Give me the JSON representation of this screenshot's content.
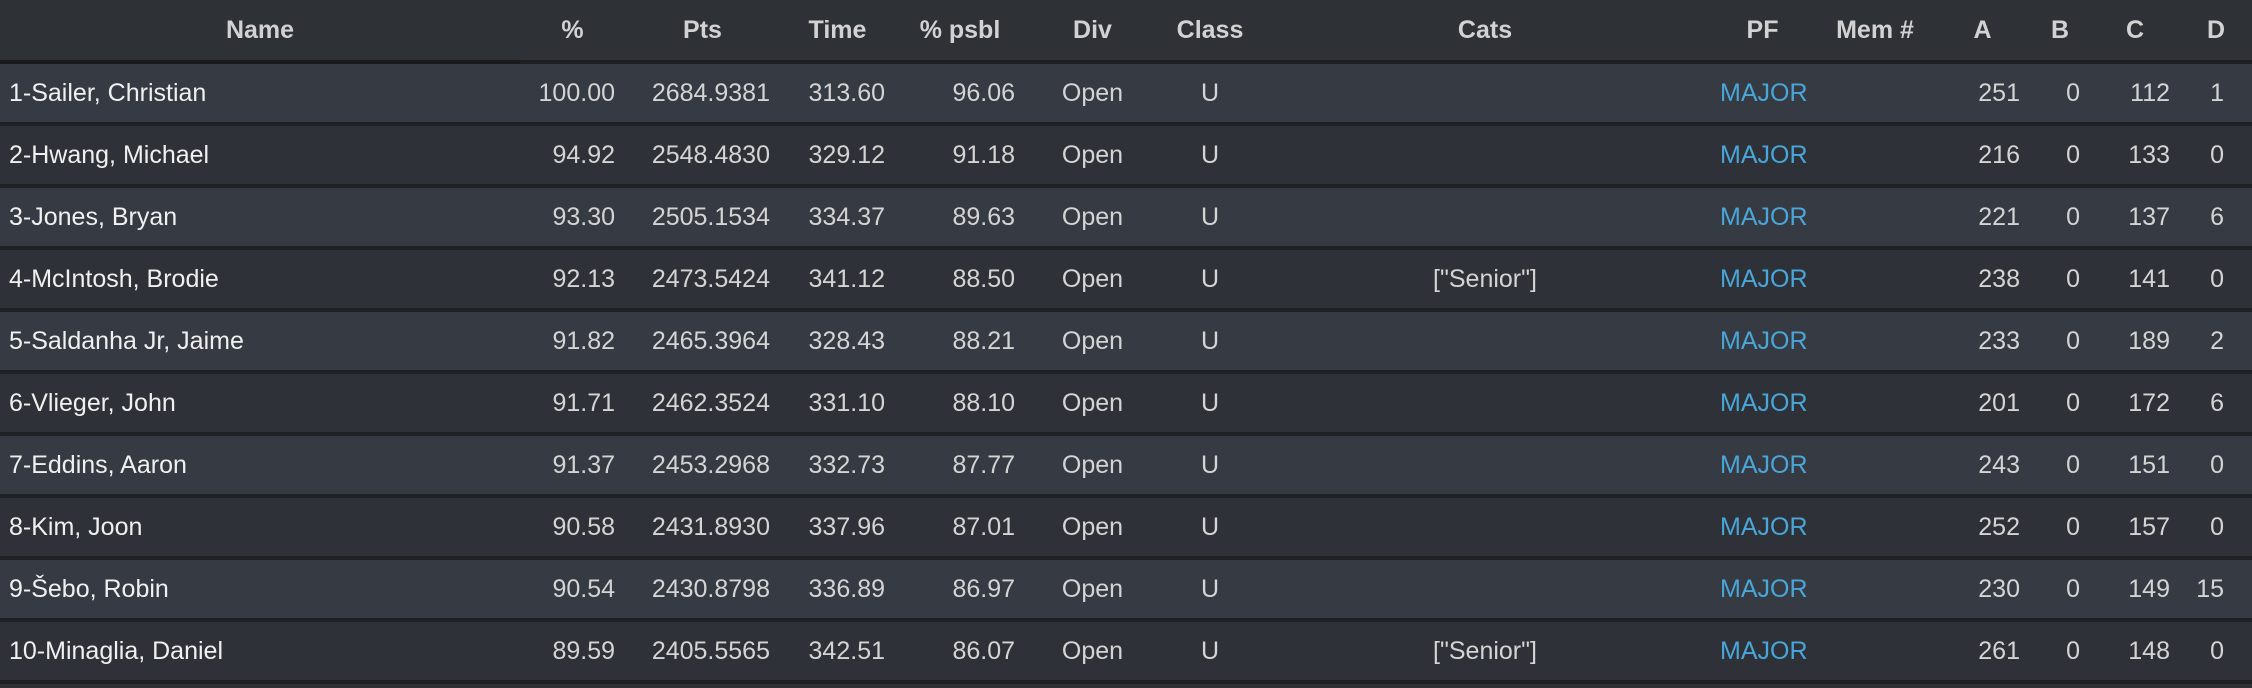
{
  "columns": [
    "Name",
    "%",
    "Pts",
    "Time",
    "% psbl",
    "Div",
    "Class",
    "Cats",
    "PF",
    "Mem #",
    "A",
    "B",
    "C",
    "D"
  ],
  "accent_color": "#4aa6d8",
  "rows": [
    [
      "1-Sailer, Christian",
      "100.00",
      "2684.9381",
      "313.60",
      "96.06",
      "Open",
      "U",
      "",
      "MAJOR",
      "",
      "251",
      "0",
      "112",
      "1"
    ],
    [
      "2-Hwang, Michael",
      "94.92",
      "2548.4830",
      "329.12",
      "91.18",
      "Open",
      "U",
      "",
      "MAJOR",
      "",
      "216",
      "0",
      "133",
      "0"
    ],
    [
      "3-Jones, Bryan",
      "93.30",
      "2505.1534",
      "334.37",
      "89.63",
      "Open",
      "U",
      "",
      "MAJOR",
      "",
      "221",
      "0",
      "137",
      "6"
    ],
    [
      "4-McIntosh, Brodie",
      "92.13",
      "2473.5424",
      "341.12",
      "88.50",
      "Open",
      "U",
      "[\"Senior\"]",
      "MAJOR",
      "",
      "238",
      "0",
      "141",
      "0"
    ],
    [
      "5-Saldanha Jr, Jaime",
      "91.82",
      "2465.3964",
      "328.43",
      "88.21",
      "Open",
      "U",
      "",
      "MAJOR",
      "",
      "233",
      "0",
      "189",
      "2"
    ],
    [
      "6-Vlieger, John",
      "91.71",
      "2462.3524",
      "331.10",
      "88.10",
      "Open",
      "U",
      "",
      "MAJOR",
      "",
      "201",
      "0",
      "172",
      "6"
    ],
    [
      "7-Eddins, Aaron",
      "91.37",
      "2453.2968",
      "332.73",
      "87.77",
      "Open",
      "U",
      "",
      "MAJOR",
      "",
      "243",
      "0",
      "151",
      "0"
    ],
    [
      "8-Kim, Joon",
      "90.58",
      "2431.8930",
      "337.96",
      "87.01",
      "Open",
      "U",
      "",
      "MAJOR",
      "",
      "252",
      "0",
      "157",
      "0"
    ],
    [
      "9-Šebo, Robin",
      "90.54",
      "2430.8798",
      "336.89",
      "86.97",
      "Open",
      "U",
      "",
      "MAJOR",
      "",
      "230",
      "0",
      "149",
      "15"
    ],
    [
      "10-Minaglia, Daniel",
      "89.59",
      "2405.5565",
      "342.51",
      "86.07",
      "Open",
      "U",
      "[\"Senior\"]",
      "MAJOR",
      "",
      "261",
      "0",
      "148",
      "0"
    ]
  ]
}
